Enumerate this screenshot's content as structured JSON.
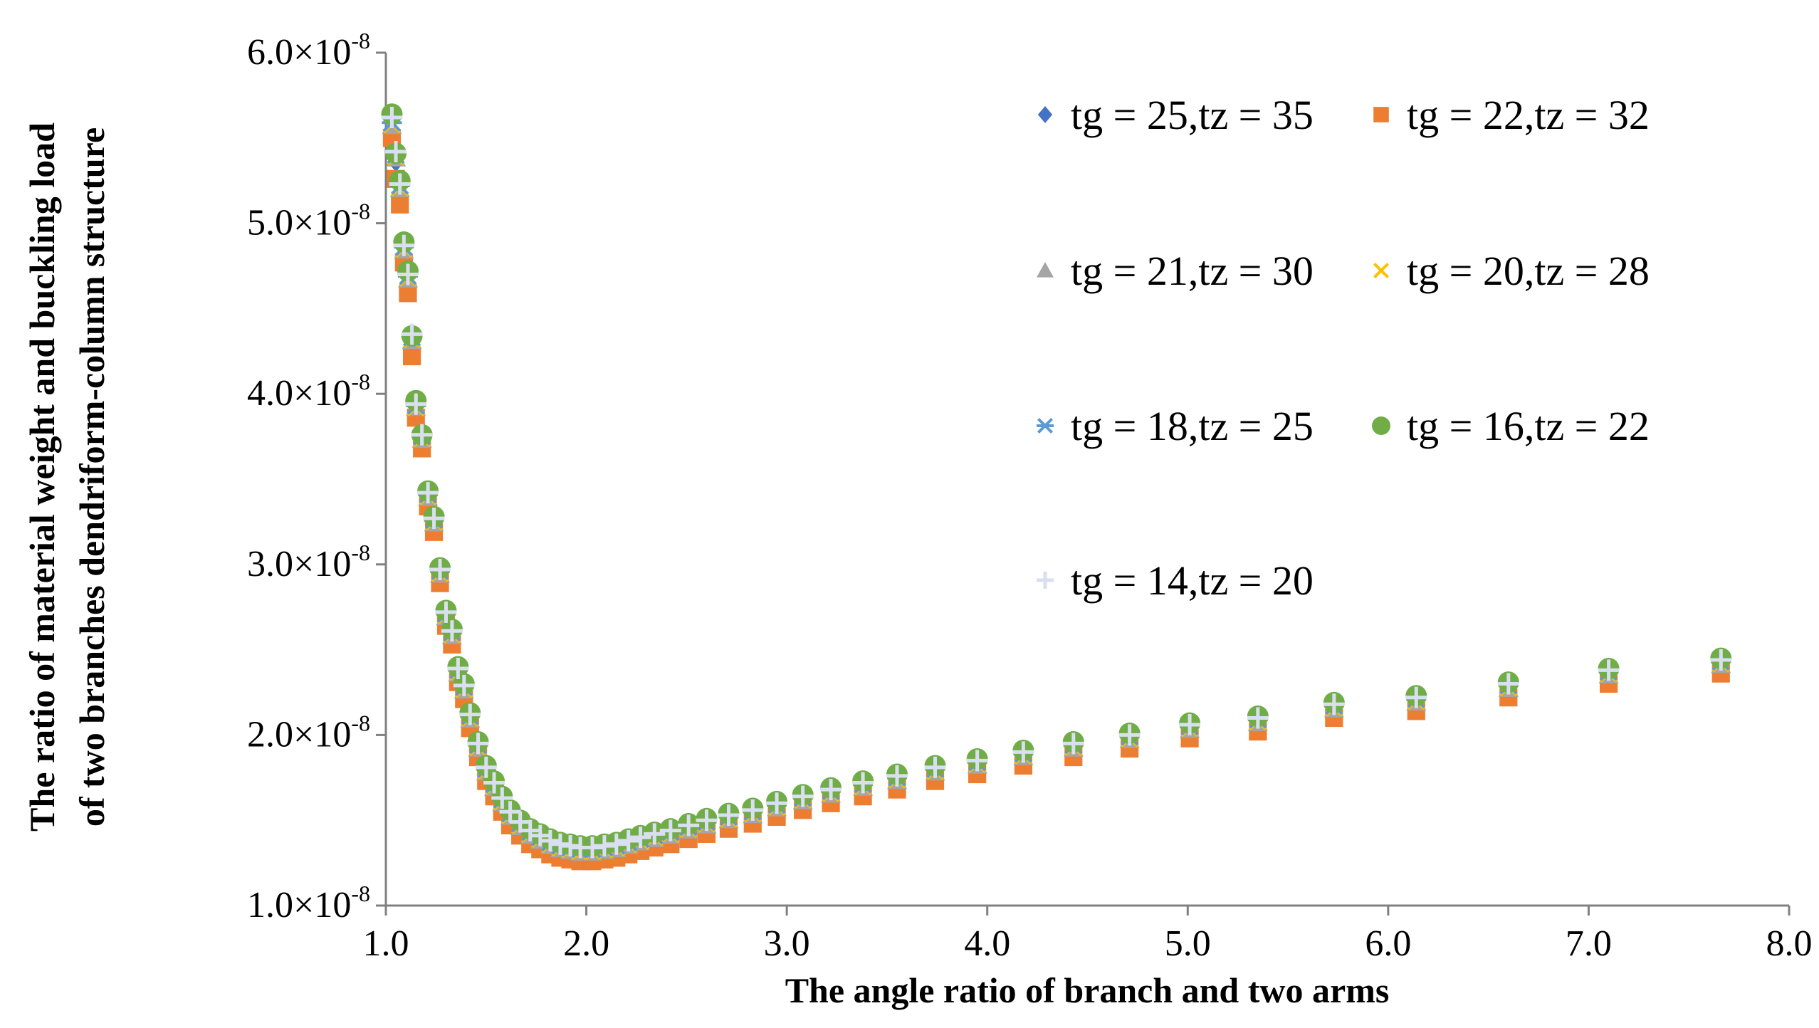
{
  "chart_data": {
    "type": "scatter",
    "title": "",
    "xlabel": "The angle ratio of branch and two arms",
    "ylabel_line1": "The ratio of material weight and buckling load",
    "ylabel_line2": "of two branches dendriform-column structure",
    "xlim": [
      1.0,
      8.0
    ],
    "ylim": [
      1.0,
      6.0
    ],
    "y_unit_base": "×10",
    "y_unit_exponent": "-8",
    "xticks": [
      1.0,
      2.0,
      3.0,
      4.0,
      5.0,
      6.0,
      7.0,
      8.0
    ],
    "xtick_labels": [
      "1.0",
      "2.0",
      "3.0",
      "4.0",
      "5.0",
      "6.0",
      "7.0",
      "8.0"
    ],
    "yticks": [
      1.0,
      2.0,
      3.0,
      4.0,
      5.0,
      6.0
    ],
    "ytick_labels": [
      "1.0",
      "2.0",
      "3.0",
      "4.0",
      "5.0",
      "6.0"
    ],
    "x": [
      1.03,
      1.05,
      1.07,
      1.09,
      1.11,
      1.13,
      1.15,
      1.18,
      1.21,
      1.24,
      1.27,
      1.3,
      1.33,
      1.36,
      1.39,
      1.42,
      1.46,
      1.5,
      1.54,
      1.58,
      1.62,
      1.67,
      1.72,
      1.77,
      1.82,
      1.87,
      1.92,
      1.97,
      2.03,
      2.09,
      2.15,
      2.21,
      2.27,
      2.34,
      2.42,
      2.51,
      2.6,
      2.71,
      2.83,
      2.95,
      3.08,
      3.22,
      3.38,
      3.55,
      3.74,
      3.95,
      4.18,
      4.43,
      4.71,
      5.01,
      5.35,
      5.73,
      6.14,
      6.6,
      7.1,
      7.66
    ],
    "series": [
      {
        "name": "tg = 25,tz = 35",
        "color": "#4472c4",
        "marker": "diamond",
        "values": [
          5.54,
          5.36,
          5.18,
          4.82,
          4.65,
          4.3,
          3.9,
          3.72,
          3.38,
          3.23,
          2.93,
          2.68,
          2.57,
          2.35,
          2.25,
          2.08,
          1.91,
          1.77,
          1.68,
          1.59,
          1.51,
          1.45,
          1.4,
          1.37,
          1.34,
          1.32,
          1.31,
          1.3,
          1.3,
          1.31,
          1.32,
          1.34,
          1.36,
          1.38,
          1.4,
          1.43,
          1.46,
          1.49,
          1.52,
          1.56,
          1.6,
          1.64,
          1.68,
          1.72,
          1.77,
          1.81,
          1.86,
          1.91,
          1.96,
          2.02,
          2.06,
          2.14,
          2.18,
          2.26,
          2.34,
          2.4
        ]
      },
      {
        "name": "tg = 22,tz = 32",
        "color": "#ed7d31",
        "marker": "square",
        "values": [
          5.5,
          5.26,
          5.11,
          4.77,
          4.59,
          4.22,
          3.86,
          3.68,
          3.34,
          3.19,
          2.89,
          2.64,
          2.53,
          2.31,
          2.21,
          2.04,
          1.87,
          1.73,
          1.64,
          1.55,
          1.47,
          1.41,
          1.36,
          1.33,
          1.3,
          1.28,
          1.27,
          1.26,
          1.26,
          1.27,
          1.28,
          1.3,
          1.32,
          1.34,
          1.36,
          1.39,
          1.42,
          1.45,
          1.48,
          1.52,
          1.56,
          1.6,
          1.64,
          1.68,
          1.73,
          1.77,
          1.82,
          1.87,
          1.92,
          1.98,
          2.02,
          2.1,
          2.14,
          2.22,
          2.3,
          2.36
        ]
      },
      {
        "name": "tg = 21,tz = 30",
        "color": "#a5a5a5",
        "marker": "triangle",
        "values": [
          5.57,
          5.38,
          5.2,
          4.84,
          4.67,
          4.31,
          3.92,
          3.73,
          3.39,
          3.24,
          2.94,
          2.69,
          2.58,
          2.36,
          2.26,
          2.09,
          1.92,
          1.78,
          1.69,
          1.6,
          1.52,
          1.46,
          1.41,
          1.38,
          1.35,
          1.33,
          1.32,
          1.31,
          1.31,
          1.32,
          1.33,
          1.35,
          1.37,
          1.39,
          1.41,
          1.44,
          1.47,
          1.5,
          1.53,
          1.57,
          1.61,
          1.65,
          1.69,
          1.73,
          1.78,
          1.82,
          1.87,
          1.92,
          1.97,
          2.03,
          2.07,
          2.15,
          2.19,
          2.27,
          2.35,
          2.41
        ]
      },
      {
        "name": "tg = 20,tz = 28",
        "color": "#ffc000",
        "marker": "x",
        "values": [
          5.58,
          5.39,
          5.21,
          4.85,
          4.68,
          4.32,
          3.92,
          3.74,
          3.4,
          3.25,
          2.95,
          2.7,
          2.59,
          2.37,
          2.27,
          2.1,
          1.93,
          1.79,
          1.7,
          1.61,
          1.53,
          1.47,
          1.42,
          1.39,
          1.36,
          1.34,
          1.33,
          1.32,
          1.32,
          1.33,
          1.34,
          1.36,
          1.38,
          1.4,
          1.42,
          1.45,
          1.48,
          1.51,
          1.54,
          1.58,
          1.62,
          1.66,
          1.7,
          1.74,
          1.79,
          1.83,
          1.88,
          1.93,
          1.98,
          2.04,
          2.08,
          2.16,
          2.2,
          2.28,
          2.36,
          2.42
        ]
      },
      {
        "name": "tg = 18,tz = 25",
        "color": "#5b9bd5",
        "marker": "star",
        "values": [
          5.59,
          5.4,
          5.22,
          4.86,
          4.69,
          4.33,
          3.93,
          3.75,
          3.41,
          3.26,
          2.96,
          2.71,
          2.6,
          2.38,
          2.28,
          2.11,
          1.94,
          1.8,
          1.71,
          1.62,
          1.54,
          1.48,
          1.43,
          1.4,
          1.37,
          1.35,
          1.34,
          1.33,
          1.33,
          1.34,
          1.35,
          1.37,
          1.39,
          1.41,
          1.43,
          1.46,
          1.49,
          1.52,
          1.55,
          1.59,
          1.63,
          1.67,
          1.71,
          1.75,
          1.8,
          1.84,
          1.89,
          1.94,
          1.99,
          2.05,
          2.09,
          2.17,
          2.21,
          2.29,
          2.37,
          2.43
        ]
      },
      {
        "name": "tg = 16,tz = 22",
        "color": "#70ad47",
        "marker": "circle",
        "values": [
          5.64,
          5.41,
          5.25,
          4.89,
          4.72,
          4.34,
          3.96,
          3.76,
          3.43,
          3.28,
          2.98,
          2.73,
          2.62,
          2.4,
          2.3,
          2.13,
          1.96,
          1.82,
          1.73,
          1.64,
          1.56,
          1.5,
          1.45,
          1.42,
          1.39,
          1.37,
          1.36,
          1.35,
          1.35,
          1.36,
          1.37,
          1.39,
          1.41,
          1.43,
          1.45,
          1.48,
          1.51,
          1.54,
          1.57,
          1.61,
          1.65,
          1.69,
          1.73,
          1.77,
          1.82,
          1.86,
          1.91,
          1.96,
          2.01,
          2.07,
          2.11,
          2.19,
          2.23,
          2.31,
          2.39,
          2.45
        ]
      },
      {
        "name": "tg = 14,tz = 20",
        "color": "#d9dff0",
        "marker": "plus",
        "values": [
          5.62,
          5.42,
          5.23,
          4.87,
          4.7,
          4.35,
          3.94,
          3.76,
          3.42,
          3.27,
          2.97,
          2.72,
          2.61,
          2.39,
          2.29,
          2.12,
          1.95,
          1.81,
          1.72,
          1.63,
          1.55,
          1.49,
          1.44,
          1.41,
          1.38,
          1.36,
          1.35,
          1.34,
          1.34,
          1.35,
          1.36,
          1.38,
          1.4,
          1.42,
          1.44,
          1.47,
          1.5,
          1.53,
          1.56,
          1.6,
          1.64,
          1.68,
          1.72,
          1.76,
          1.81,
          1.85,
          1.9,
          1.95,
          2.0,
          2.06,
          2.1,
          2.18,
          2.22,
          2.3,
          2.38,
          2.44
        ]
      }
    ],
    "legend_position": "top-right",
    "grid": false
  }
}
